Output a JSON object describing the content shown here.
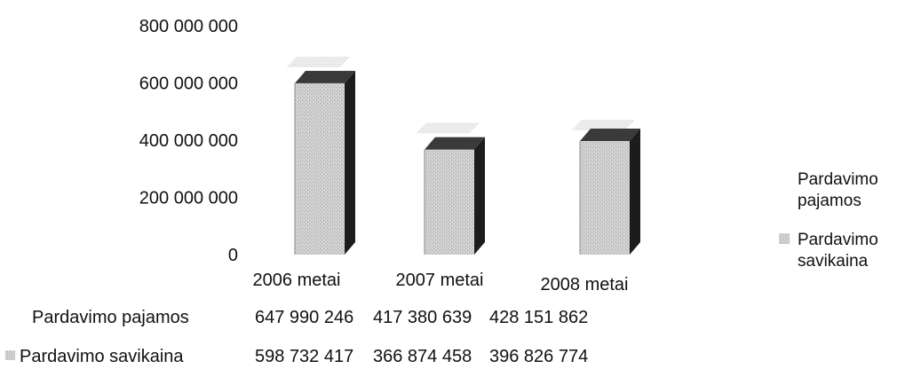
{
  "chart_data": {
    "type": "bar",
    "title": "",
    "xlabel": "",
    "ylabel": "",
    "categories": [
      "2006 metai",
      "2007 metai",
      "2008 metai"
    ],
    "series": [
      {
        "name": "Pardavimo pajamos",
        "values": [
          647990246,
          417380639,
          428151862
        ],
        "display_values": [
          "647 990 246",
          "417 380 639",
          "428 151 862"
        ],
        "color": "#e6e6e6"
      },
      {
        "name": "Pardavimo savikaina",
        "values": [
          598732417,
          366874458,
          396826774
        ],
        "display_values": [
          "598 732 417",
          "366 874 458",
          "396 826 774"
        ],
        "color": "#b5b5b5"
      }
    ],
    "yticks": [
      0,
      200000000,
      400000000,
      600000000,
      800000000
    ],
    "ytick_labels": [
      "0",
      "200 000 000",
      "400 000 000",
      "600 000 000",
      "800 000 000"
    ],
    "ylim": [
      0,
      800000000
    ],
    "grid": false,
    "three_d": true,
    "legend_position": "right",
    "data_table": true
  }
}
